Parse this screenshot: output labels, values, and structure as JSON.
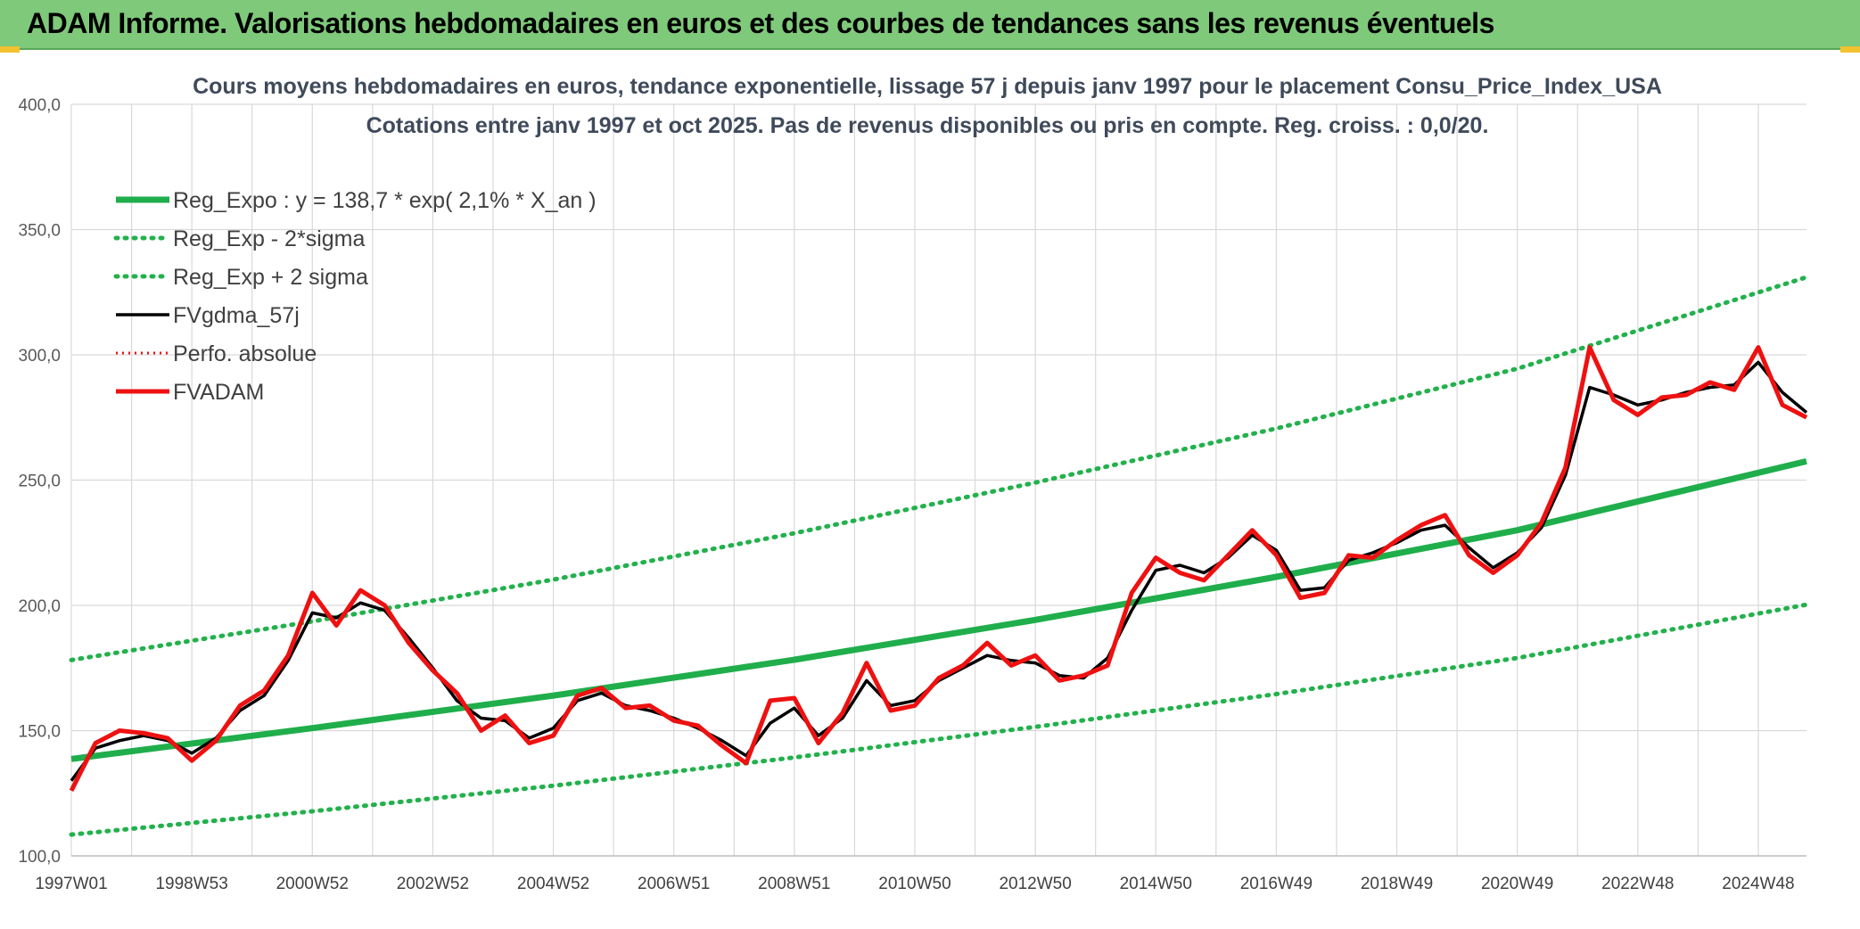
{
  "banner": {
    "title": "ADAM Informe. Valorisations hebdomadaires en euros et des courbes de tendances sans les revenus éventuels"
  },
  "colors": {
    "banner": "#7fc97a",
    "reg": "#1fae4b",
    "band": "#22b14c",
    "gdma": "#000000",
    "adam": "#ee1111",
    "perf": "#ee1111",
    "grid": "#d9d9d9"
  },
  "chart_data": {
    "type": "line",
    "title": "Cours moyens hebdomadaires en euros, tendance exponentielle, lissage 57 j depuis janv 1997 pour le placement Consu_Price_Index_USA",
    "subtitle": "Cotations entre janv 1997 et oct 2025. Pas de revenus disponibles ou pris en compte. Reg. croiss. : 0,0/20.",
    "xlabel": "",
    "ylabel": "",
    "ylim": [
      100,
      400
    ],
    "xlim": [
      1997.0,
      2025.8
    ],
    "y_ticks": [
      "100,0",
      "150,0",
      "200,0",
      "250,0",
      "300,0",
      "350,0",
      "400,0"
    ],
    "x_ticks": [
      {
        "label": "1997W01",
        "t": 1997.0
      },
      {
        "label": "1998W53",
        "t": 1999.0
      },
      {
        "label": "2000W52",
        "t": 2001.0
      },
      {
        "label": "2002W52",
        "t": 2003.0
      },
      {
        "label": "2004W52",
        "t": 2005.0
      },
      {
        "label": "2006W51",
        "t": 2007.0
      },
      {
        "label": "2008W51",
        "t": 2009.0
      },
      {
        "label": "2010W50",
        "t": 2011.0
      },
      {
        "label": "2012W50",
        "t": 2013.0
      },
      {
        "label": "2014W50",
        "t": 2015.0
      },
      {
        "label": "2016W49",
        "t": 2017.0
      },
      {
        "label": "2018W49",
        "t": 2019.0
      },
      {
        "label": "2020W49",
        "t": 2021.0
      },
      {
        "label": "2022W48",
        "t": 2023.0
      },
      {
        "label": "2024W48",
        "t": 2025.0
      }
    ],
    "grid": true,
    "legend_position": "top-left",
    "series": [
      {
        "name": "Reg_Expo : y = 138,7 * exp( 2,1% *  X_an )",
        "key": "reg",
        "style": "solid-thick",
        "x": [
          1997.0,
          2001.0,
          2005.0,
          2009.0,
          2013.0,
          2017.0,
          2021.0,
          2025.8
        ],
        "y": [
          138.7,
          151.0,
          164.0,
          178.3,
          194.2,
          211.4,
          230.0,
          257.5
        ]
      },
      {
        "name": "Reg_Exp - 2*sigma",
        "key": "low",
        "style": "dotted",
        "x": [
          1997.0,
          2001.0,
          2005.0,
          2009.0,
          2013.0,
          2017.0,
          2021.0,
          2025.8
        ],
        "y": [
          108.5,
          117.8,
          128.0,
          139.3,
          151.5,
          164.6,
          179.0,
          200.3
        ]
      },
      {
        "name": "Reg_Exp + 2 sigma",
        "key": "high",
        "style": "dotted",
        "x": [
          1997.0,
          2001.0,
          2005.0,
          2009.0,
          2013.0,
          2017.0,
          2021.0,
          2025.8
        ],
        "y": [
          178.2,
          193.6,
          210.3,
          228.8,
          249.0,
          270.6,
          294.5,
          331.0
        ]
      },
      {
        "name": "FVgdma_57j",
        "key": "gdma",
        "style": "solid",
        "x": [
          1997.0,
          1997.4,
          1997.8,
          1998.2,
          1998.6,
          1999.0,
          1999.4,
          1999.8,
          2000.2,
          2000.6,
          2001.0,
          2001.4,
          2001.8,
          2002.2,
          2002.6,
          2003.0,
          2003.4,
          2003.8,
          2004.2,
          2004.6,
          2005.0,
          2005.4,
          2005.8,
          2006.2,
          2006.6,
          2007.0,
          2007.4,
          2007.8,
          2008.2,
          2008.6,
          2009.0,
          2009.4,
          2009.8,
          2010.2,
          2010.6,
          2011.0,
          2011.4,
          2011.8,
          2012.2,
          2012.6,
          2013.0,
          2013.4,
          2013.8,
          2014.2,
          2014.6,
          2015.0,
          2015.4,
          2015.8,
          2016.2,
          2016.6,
          2017.0,
          2017.4,
          2017.8,
          2018.2,
          2018.6,
          2019.0,
          2019.4,
          2019.8,
          2020.2,
          2020.6,
          2021.0,
          2021.4,
          2021.8,
          2022.2,
          2022.6,
          2023.0,
          2023.4,
          2023.8,
          2024.2,
          2024.6,
          2025.0,
          2025.4,
          2025.8
        ],
        "y": [
          130,
          143,
          146,
          148,
          146,
          141,
          147,
          158,
          164,
          178,
          197,
          195,
          201,
          198,
          187,
          175,
          162,
          155,
          154,
          147,
          151,
          162,
          165,
          160,
          158,
          155,
          151,
          146,
          140,
          153,
          159,
          148,
          155,
          170,
          160,
          162,
          170,
          175,
          180,
          178,
          177,
          172,
          171,
          179,
          198,
          214,
          216,
          213,
          219,
          228,
          222,
          206,
          207,
          218,
          221,
          225,
          230,
          232,
          223,
          215,
          221,
          231,
          252,
          287,
          284,
          280,
          282,
          285,
          287,
          288,
          297,
          285,
          277
        ]
      },
      {
        "name": "Perfo. absolue",
        "key": "perf",
        "style": "dotted-red",
        "x": [],
        "y": []
      },
      {
        "name": "FVADAM",
        "key": "adam",
        "style": "solid-thick-red",
        "x": [
          1997.0,
          1997.4,
          1997.8,
          1998.2,
          1998.6,
          1999.0,
          1999.4,
          1999.8,
          2000.2,
          2000.6,
          2001.0,
          2001.4,
          2001.8,
          2002.2,
          2002.6,
          2003.0,
          2003.4,
          2003.8,
          2004.2,
          2004.6,
          2005.0,
          2005.4,
          2005.8,
          2006.2,
          2006.6,
          2007.0,
          2007.4,
          2007.8,
          2008.2,
          2008.6,
          2009.0,
          2009.4,
          2009.8,
          2010.2,
          2010.6,
          2011.0,
          2011.4,
          2011.8,
          2012.2,
          2012.6,
          2013.0,
          2013.4,
          2013.8,
          2014.2,
          2014.6,
          2015.0,
          2015.4,
          2015.8,
          2016.2,
          2016.6,
          2017.0,
          2017.4,
          2017.8,
          2018.2,
          2018.6,
          2019.0,
          2019.4,
          2019.8,
          2020.2,
          2020.6,
          2021.0,
          2021.4,
          2021.8,
          2022.2,
          2022.6,
          2023.0,
          2023.4,
          2023.8,
          2024.2,
          2024.6,
          2025.0,
          2025.4,
          2025.8
        ],
        "y": [
          126,
          145,
          150,
          149,
          147,
          138,
          146,
          160,
          166,
          180,
          205,
          192,
          206,
          200,
          185,
          174,
          165,
          150,
          156,
          145,
          148,
          164,
          167,
          159,
          160,
          154,
          152,
          144,
          137,
          162,
          163,
          145,
          157,
          177,
          158,
          160,
          171,
          176,
          185,
          176,
          180,
          170,
          172,
          176,
          205,
          219,
          213,
          210,
          220,
          230,
          220,
          203,
          205,
          220,
          219,
          226,
          232,
          236,
          220,
          213,
          220,
          233,
          255,
          303,
          282,
          276,
          283,
          284,
          289,
          286,
          303,
          280,
          275
        ]
      }
    ]
  }
}
